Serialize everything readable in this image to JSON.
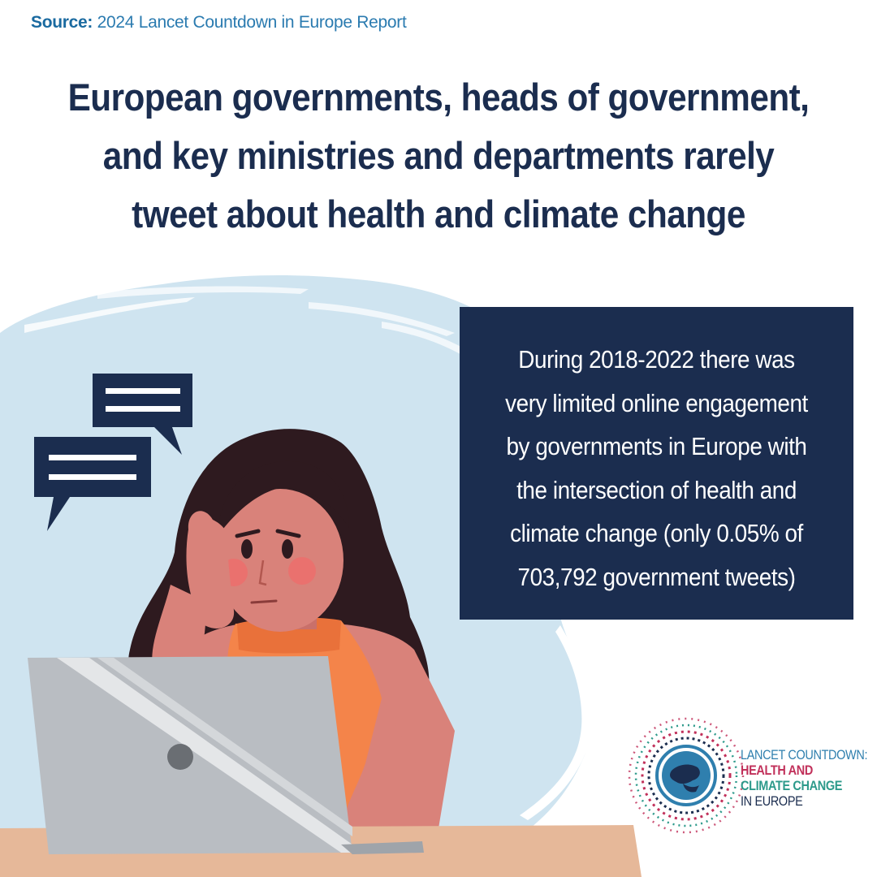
{
  "source": {
    "label": "Source:",
    "text": "2024 Lancet Countdown in Europe Report"
  },
  "headline": {
    "lines": [
      "European governments, heads of government,",
      "and key ministries and departments rarely",
      "tweet about health and climate change"
    ]
  },
  "info_box": {
    "lines": [
      "During 2018-2022 there was",
      "very limited online engagement",
      "by governments in Europe with",
      "the intersection of health and",
      "climate change (only 0.05% of",
      "703,792 government tweets)"
    ]
  },
  "logo": {
    "line1": "LANCET COUNTDOWN:",
    "line2": "HEALTH AND",
    "line3": "CLIMATE CHANGE",
    "line4": "IN EUROPE"
  },
  "colors": {
    "navy": "#1b2d4f",
    "source_blue": "#2b7bb0",
    "splash_blue": "#cfe4f0",
    "skin": "#d9827a",
    "hair": "#2e1a1f",
    "top_orange": "#f4844a",
    "laptop_gray": "#b9bdc2",
    "desk": "#e6b899",
    "logo_red": "#c1305a",
    "logo_teal": "#2d9a8b"
  }
}
